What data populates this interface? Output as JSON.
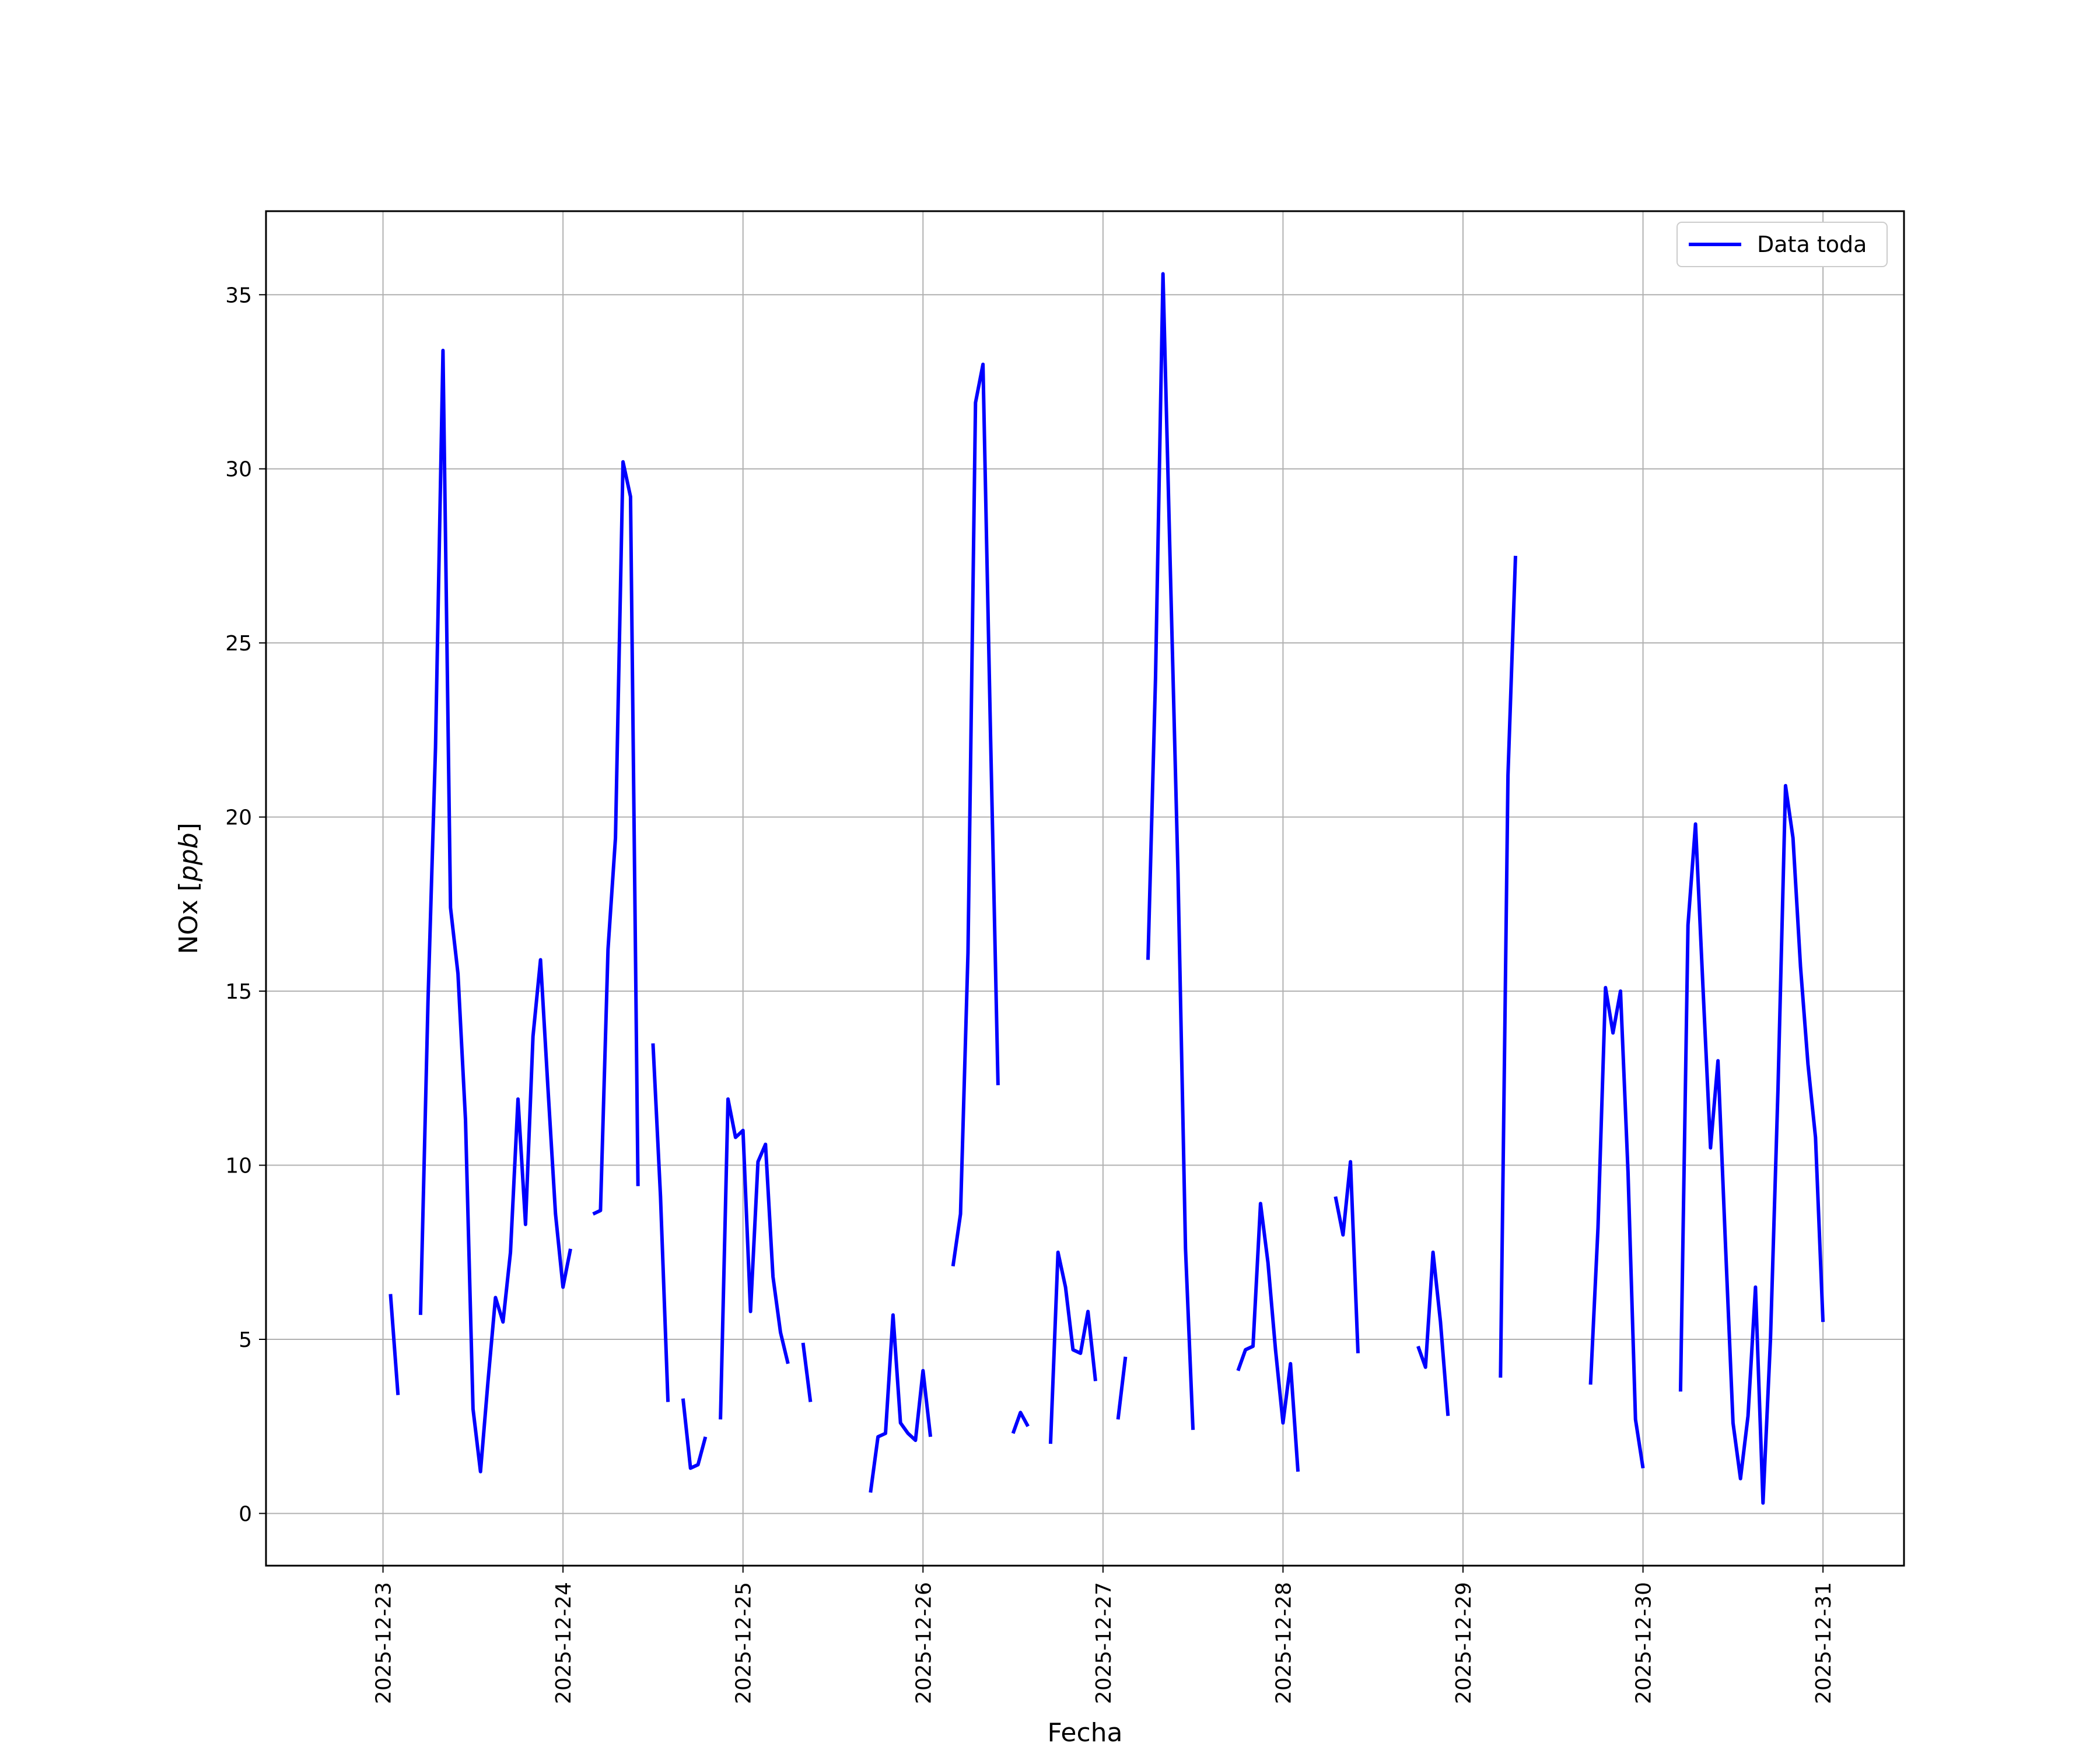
{
  "chart_data": {
    "type": "line",
    "title": "",
    "xlabel": "Fecha",
    "ylabel": "NOx [ppb]",
    "ylabel_main": "NOx ",
    "ylabel_unit": "ppb",
    "x_ticks": [
      "2025-12-23",
      "2025-12-24",
      "2025-12-25",
      "2025-12-26",
      "2025-12-27",
      "2025-12-28",
      "2025-12-29",
      "2025-12-30",
      "2025-12-31"
    ],
    "y_ticks": [
      0,
      5,
      10,
      15,
      20,
      25,
      30,
      35
    ],
    "xlim": [
      "2025-12-22T08:24",
      "2025-12-31T10:48"
    ],
    "ylim": [
      -1.5,
      37.4
    ],
    "grid": true,
    "legend_position": "top-right",
    "series": [
      {
        "name": "Data toda",
        "color": "#0000ff",
        "segments": [
          [
            [
              "2025-12-23T01:00",
              6.3
            ],
            [
              "2025-12-23T02:00",
              3.4
            ]
          ],
          [
            [
              "2025-12-23T05:00",
              5.7
            ],
            [
              "2025-12-23T06:00",
              14.7
            ],
            [
              "2025-12-23T07:00",
              22.0
            ],
            [
              "2025-12-23T08:00",
              33.4
            ],
            [
              "2025-12-23T09:00",
              17.4
            ],
            [
              "2025-12-23T10:00",
              15.5
            ],
            [
              "2025-12-23T11:00",
              11.3
            ],
            [
              "2025-12-23T12:00",
              3.0
            ],
            [
              "2025-12-23T13:00",
              1.2
            ],
            [
              "2025-12-23T14:00",
              3.8
            ],
            [
              "2025-12-23T15:00",
              6.2
            ],
            [
              "2025-12-23T16:00",
              5.5
            ],
            [
              "2025-12-23T17:00",
              7.5
            ],
            [
              "2025-12-23T18:00",
              11.9
            ],
            [
              "2025-12-23T19:00",
              8.3
            ],
            [
              "2025-12-23T20:00",
              13.7
            ],
            [
              "2025-12-23T21:00",
              15.9
            ],
            [
              "2025-12-23T22:00",
              12.2
            ],
            [
              "2025-12-23T23:00",
              8.6
            ],
            [
              "2025-12-24T00:00",
              6.5
            ],
            [
              "2025-12-24T01:00",
              7.6
            ]
          ],
          [
            [
              "2025-12-24T04:00",
              8.6
            ],
            [
              "2025-12-24T05:00",
              8.7
            ],
            [
              "2025-12-24T06:00",
              16.2
            ],
            [
              "2025-12-24T07:00",
              19.4
            ],
            [
              "2025-12-24T08:00",
              30.2
            ],
            [
              "2025-12-24T09:00",
              29.2
            ],
            [
              "2025-12-24T10:00",
              9.4
            ]
          ],
          [
            [
              "2025-12-24T12:00",
              13.5
            ],
            [
              "2025-12-24T13:00",
              9.1
            ],
            [
              "2025-12-24T14:00",
              3.2
            ]
          ],
          [
            [
              "2025-12-24T16:00",
              3.3
            ],
            [
              "2025-12-24T17:00",
              1.3
            ],
            [
              "2025-12-24T18:00",
              1.4
            ],
            [
              "2025-12-24T19:00",
              2.2
            ]
          ],
          [
            [
              "2025-12-24T21:00",
              2.7
            ],
            [
              "2025-12-24T22:00",
              11.9
            ],
            [
              "2025-12-24T23:00",
              10.8
            ],
            [
              "2025-12-25T00:00",
              11.0
            ],
            [
              "2025-12-25T01:00",
              5.8
            ],
            [
              "2025-12-25T02:00",
              10.1
            ],
            [
              "2025-12-25T03:00",
              10.6
            ],
            [
              "2025-12-25T04:00",
              6.8
            ],
            [
              "2025-12-25T05:00",
              5.2
            ],
            [
              "2025-12-25T06:00",
              4.3
            ]
          ],
          [
            [
              "2025-12-25T08:00",
              4.9
            ],
            [
              "2025-12-25T09:00",
              3.2
            ]
          ],
          [
            [
              "2025-12-25T17:00",
              0.6
            ],
            [
              "2025-12-25T18:00",
              2.2
            ],
            [
              "2025-12-25T19:00",
              2.3
            ],
            [
              "2025-12-25T20:00",
              5.7
            ],
            [
              "2025-12-25T21:00",
              2.6
            ],
            [
              "2025-12-25T22:00",
              2.3
            ],
            [
              "2025-12-25T23:00",
              2.1
            ],
            [
              "2025-12-26T00:00",
              4.1
            ],
            [
              "2025-12-26T01:00",
              2.2
            ]
          ],
          [
            [
              "2025-12-26T04:00",
              7.1
            ],
            [
              "2025-12-26T05:00",
              8.6
            ],
            [
              "2025-12-26T06:00",
              16.1
            ],
            [
              "2025-12-26T07:00",
              31.9
            ],
            [
              "2025-12-26T08:00",
              33.0
            ],
            [
              "2025-12-26T09:00",
              22.4
            ],
            [
              "2025-12-26T10:00",
              12.3
            ]
          ],
          [
            [
              "2025-12-26T12:00",
              2.3
            ],
            [
              "2025-12-26T13:00",
              2.9
            ],
            [
              "2025-12-26T14:00",
              2.5
            ]
          ],
          [
            [
              "2025-12-26T17:00",
              2.0
            ],
            [
              "2025-12-26T18:00",
              7.5
            ],
            [
              "2025-12-26T19:00",
              6.5
            ],
            [
              "2025-12-26T20:00",
              4.7
            ],
            [
              "2025-12-26T21:00",
              4.6
            ],
            [
              "2025-12-26T22:00",
              5.8
            ],
            [
              "2025-12-26T23:00",
              3.8
            ]
          ],
          [
            [
              "2025-12-27T02:00",
              2.7
            ],
            [
              "2025-12-27T03:00",
              4.5
            ]
          ],
          [
            [
              "2025-12-27T06:00",
              15.9
            ],
            [
              "2025-12-27T07:00",
              24.0
            ],
            [
              "2025-12-27T08:00",
              35.6
            ],
            [
              "2025-12-27T09:00",
              26.9
            ],
            [
              "2025-12-27T10:00",
              18.4
            ],
            [
              "2025-12-27T11:00",
              7.6
            ],
            [
              "2025-12-27T12:00",
              2.4
            ]
          ],
          [
            [
              "2025-12-27T18:00",
              4.1
            ],
            [
              "2025-12-27T19:00",
              4.7
            ],
            [
              "2025-12-27T20:00",
              4.8
            ],
            [
              "2025-12-27T21:00",
              8.9
            ],
            [
              "2025-12-27T22:00",
              7.2
            ],
            [
              "2025-12-27T23:00",
              4.7
            ],
            [
              "2025-12-28T00:00",
              2.6
            ],
            [
              "2025-12-28T01:00",
              4.3
            ],
            [
              "2025-12-28T02:00",
              1.2
            ]
          ],
          [
            [
              "2025-12-28T07:00",
              9.1
            ],
            [
              "2025-12-28T08:00",
              8.0
            ],
            [
              "2025-12-28T09:00",
              10.1
            ],
            [
              "2025-12-28T10:00",
              4.6
            ]
          ],
          [
            [
              "2025-12-28T18:00",
              4.8
            ],
            [
              "2025-12-28T19:00",
              4.2
            ],
            [
              "2025-12-28T20:00",
              7.5
            ],
            [
              "2025-12-28T21:00",
              5.5
            ],
            [
              "2025-12-28T22:00",
              2.8
            ]
          ],
          [
            [
              "2025-12-29T05:00",
              3.9
            ],
            [
              "2025-12-29T06:00",
              21.2
            ],
            [
              "2025-12-29T07:00",
              27.5
            ]
          ],
          [
            [
              "2025-12-29T17:00",
              3.7
            ],
            [
              "2025-12-29T18:00",
              8.2
            ],
            [
              "2025-12-29T19:00",
              15.1
            ],
            [
              "2025-12-29T20:00",
              13.8
            ],
            [
              "2025-12-29T21:00",
              15.0
            ],
            [
              "2025-12-29T22:00",
              9.8
            ],
            [
              "2025-12-29T23:00",
              2.7
            ],
            [
              "2025-12-30T00:00",
              1.3
            ]
          ],
          [
            [
              "2025-12-30T05:00",
              3.5
            ],
            [
              "2025-12-30T06:00",
              16.9
            ],
            [
              "2025-12-30T07:00",
              19.8
            ],
            [
              "2025-12-30T08:00",
              15.1
            ],
            [
              "2025-12-30T09:00",
              10.5
            ],
            [
              "2025-12-30T10:00",
              13.0
            ],
            [
              "2025-12-30T11:00",
              7.7
            ],
            [
              "2025-12-30T12:00",
              2.6
            ],
            [
              "2025-12-30T13:00",
              1.0
            ],
            [
              "2025-12-30T14:00",
              2.8
            ],
            [
              "2025-12-30T15:00",
              6.5
            ],
            [
              "2025-12-30T16:00",
              0.3
            ],
            [
              "2025-12-30T17:00",
              5.0
            ],
            [
              "2025-12-30T18:00",
              12.2
            ],
            [
              "2025-12-30T19:00",
              20.9
            ],
            [
              "2025-12-30T20:00",
              19.4
            ],
            [
              "2025-12-30T21:00",
              15.7
            ],
            [
              "2025-12-30T22:00",
              12.9
            ],
            [
              "2025-12-30T23:00",
              10.8
            ],
            [
              "2025-12-31T00:00",
              5.5
            ]
          ]
        ]
      }
    ]
  }
}
